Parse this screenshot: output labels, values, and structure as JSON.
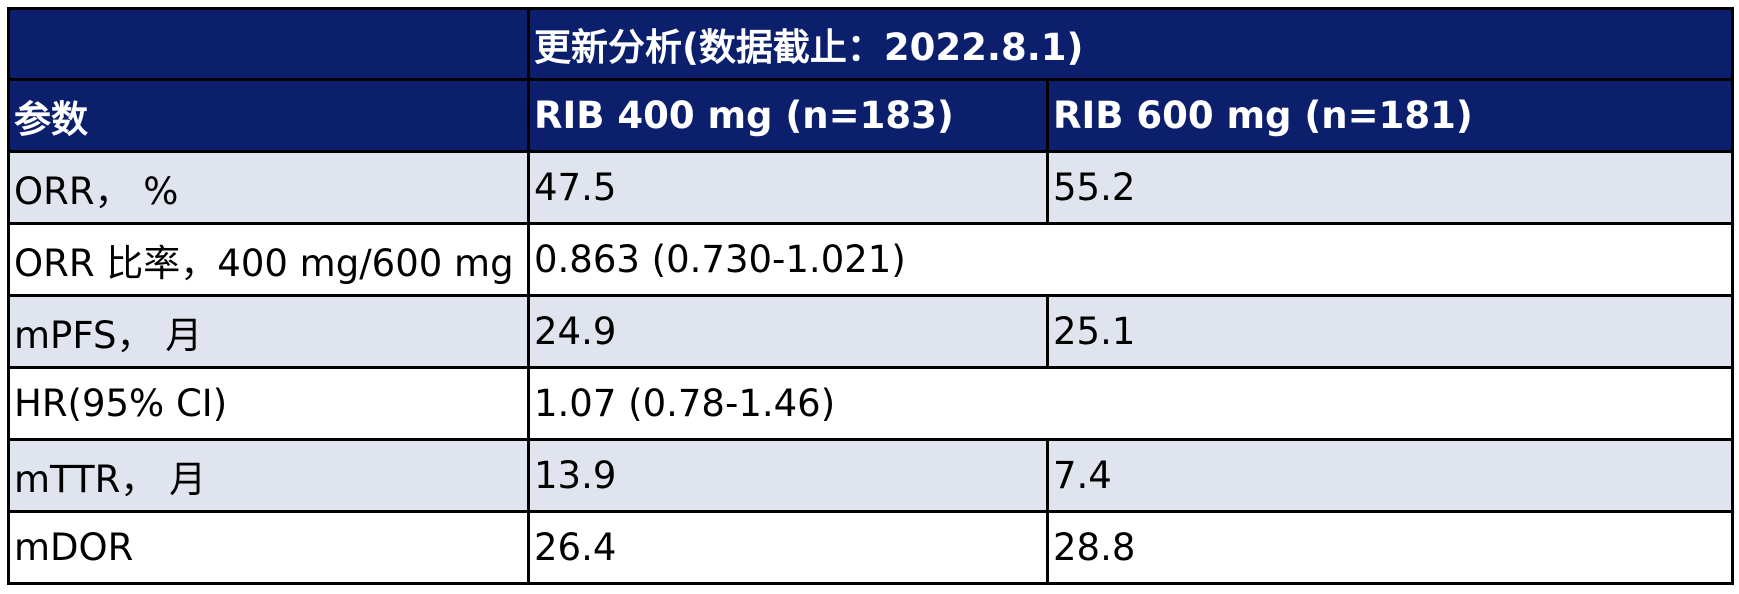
{
  "colors": {
    "header_bg": "#0b1f6c",
    "header_text": "#ffffff",
    "row_shaded": "#e0e4ee",
    "row_plain": "#ffffff",
    "border": "#000000"
  },
  "table": {
    "banner": "更新分析(数据截止：2022.8.1)",
    "columns": {
      "param": "参数",
      "rib400": "RIB 400 mg (n=183)",
      "rib600": "RIB 600 mg (n=181)"
    },
    "rows": [
      {
        "label": "ORR，  %",
        "rib400": "47.5",
        "rib600": "55.2"
      },
      {
        "label": "ORR 比率，400 mg/600 mg",
        "combined": "0.863 (0.730-1.021)"
      },
      {
        "label": "mPFS，  月",
        "rib400": "24.9",
        "rib600": "25.1"
      },
      {
        "label": "HR(95% CI)",
        "combined": "1.07 (0.78-1.46)"
      },
      {
        "label": "mTTR，  月",
        "rib400": "13.9",
        "rib600": "7.4"
      },
      {
        "label": "mDOR",
        "rib400": "26.4",
        "rib600": "28.8"
      }
    ]
  }
}
